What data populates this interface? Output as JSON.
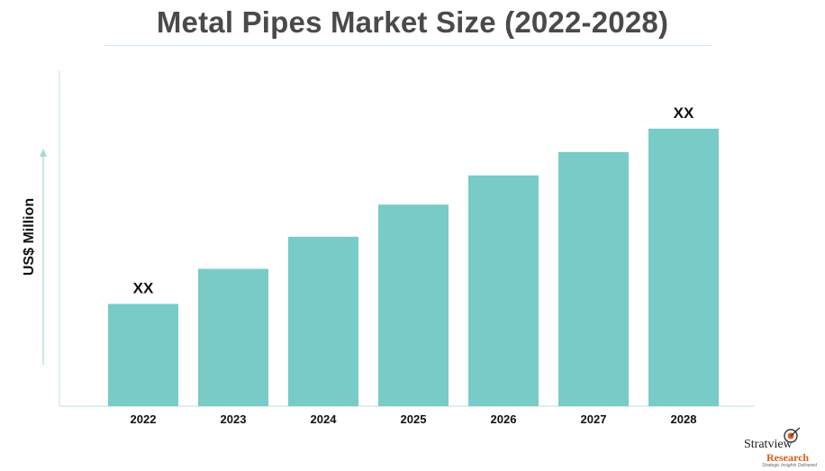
{
  "chart_data": {
    "type": "bar",
    "title": "Metal Pipes Market Size (2022-2028)",
    "ylabel": "US$ Million",
    "xlabel": "",
    "categories": [
      "2022",
      "2023",
      "2024",
      "2025",
      "2026",
      "2027",
      "2028"
    ],
    "values": [
      35,
      47,
      58,
      69,
      79,
      87,
      95
    ],
    "ylim": [
      0,
      115
    ],
    "data_labels": [
      "XX",
      "",
      "",
      "",
      "",
      "",
      "XX"
    ],
    "colors": {
      "bar": "#78cbc7",
      "axis": "#d4ece9",
      "text": "#111111"
    }
  },
  "branding": {
    "name": "Stratview",
    "name2": "Research",
    "tagline": "Strategic Insights Delivered"
  }
}
